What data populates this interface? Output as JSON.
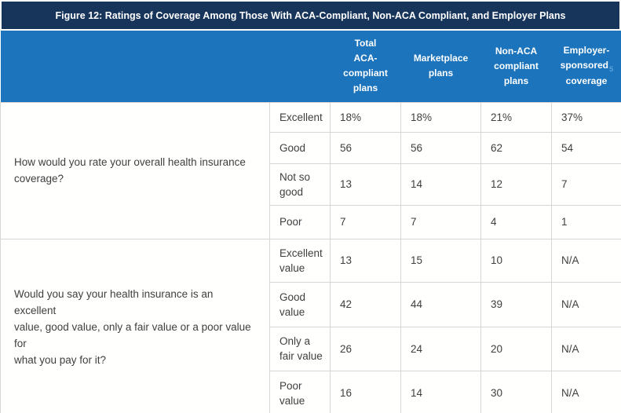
{
  "title": "Figure 12: Ratings of Coverage Among Those With ACA-Compliant, Non-ACA Compliant, and Employer Plans",
  "colors": {
    "title_bar": "#17345A",
    "header_band": "#1B74BC",
    "footnote_marker": "#5BA2DA",
    "cell_border": "#D9D6D1",
    "body_text": "#3F3F3F"
  },
  "table": {
    "columns": [
      {
        "label": "Total ACA-compliant plans",
        "lines": [
          "Total",
          "ACA-",
          "compliant",
          "plans"
        ]
      },
      {
        "label": "Marketplace plans",
        "lines": [
          "Marketplace",
          "plans"
        ]
      },
      {
        "label": "Non-ACA compliant plans",
        "lines": [
          "Non-ACA",
          "compliant",
          "plans"
        ]
      },
      {
        "label": "Employer-sponsored coverage",
        "lines": [
          "Employer-",
          "sponsored",
          "coverage"
        ],
        "footnote": "5",
        "footnote_after_line": 1
      }
    ],
    "sections": [
      {
        "question": "How would you rate your overall health insurance\ncoverage?",
        "rows": [
          {
            "label": "Excellent",
            "values": [
              "18%",
              "18%",
              "21%",
              "37%"
            ]
          },
          {
            "label": "Good",
            "values": [
              "56",
              "56",
              "62",
              "54"
            ]
          },
          {
            "label": "Not so good",
            "values": [
              "13",
              "14",
              "12",
              "7"
            ]
          },
          {
            "label": "Poor",
            "values": [
              "7",
              "7",
              "4",
              "1"
            ]
          }
        ]
      },
      {
        "question": "Would you say your health insurance is an excellent\nvalue, good value, only a fair value or a poor value for\nwhat you pay for it?",
        "rows": [
          {
            "label": "Excellent value",
            "values": [
              "13",
              "15",
              "10",
              "N/A"
            ]
          },
          {
            "label": "Good value",
            "values": [
              "42",
              "44",
              "39",
              "N/A"
            ]
          },
          {
            "label": "Only a fair value",
            "values": [
              "26",
              "24",
              "20",
              "N/A"
            ]
          },
          {
            "label": "Poor value",
            "values": [
              "16",
              "14",
              "30",
              "N/A"
            ]
          }
        ]
      }
    ]
  },
  "chart_data": {
    "type": "table",
    "title": "Figure 12: Ratings of Coverage Among Those With ACA-Compliant, Non-ACA Compliant, and Employer Plans",
    "columns": [
      "Total ACA-compliant plans",
      "Marketplace plans",
      "Non-ACA compliant plans",
      "Employer-sponsored coverage"
    ],
    "unit": "percent",
    "na_text": "N/A",
    "column_footnotes": {
      "Employer-sponsored coverage": "5"
    },
    "sections": [
      {
        "question": "How would you rate your overall health insurance coverage?",
        "rows": [
          {
            "label": "Excellent",
            "values": [
              18,
              18,
              21,
              37
            ]
          },
          {
            "label": "Good",
            "values": [
              56,
              56,
              62,
              54
            ]
          },
          {
            "label": "Not so good",
            "values": [
              13,
              14,
              12,
              7
            ]
          },
          {
            "label": "Poor",
            "values": [
              7,
              7,
              4,
              1
            ]
          }
        ]
      },
      {
        "question": "Would you say your health insurance is an excellent value, good value, only a fair value or a poor value for what you pay for it?",
        "rows": [
          {
            "label": "Excellent value",
            "values": [
              13,
              15,
              10,
              null
            ]
          },
          {
            "label": "Good value",
            "values": [
              42,
              44,
              39,
              null
            ]
          },
          {
            "label": "Only a fair value",
            "values": [
              26,
              24,
              20,
              null
            ]
          },
          {
            "label": "Poor value",
            "values": [
              16,
              14,
              30,
              null
            ]
          }
        ]
      }
    ]
  }
}
